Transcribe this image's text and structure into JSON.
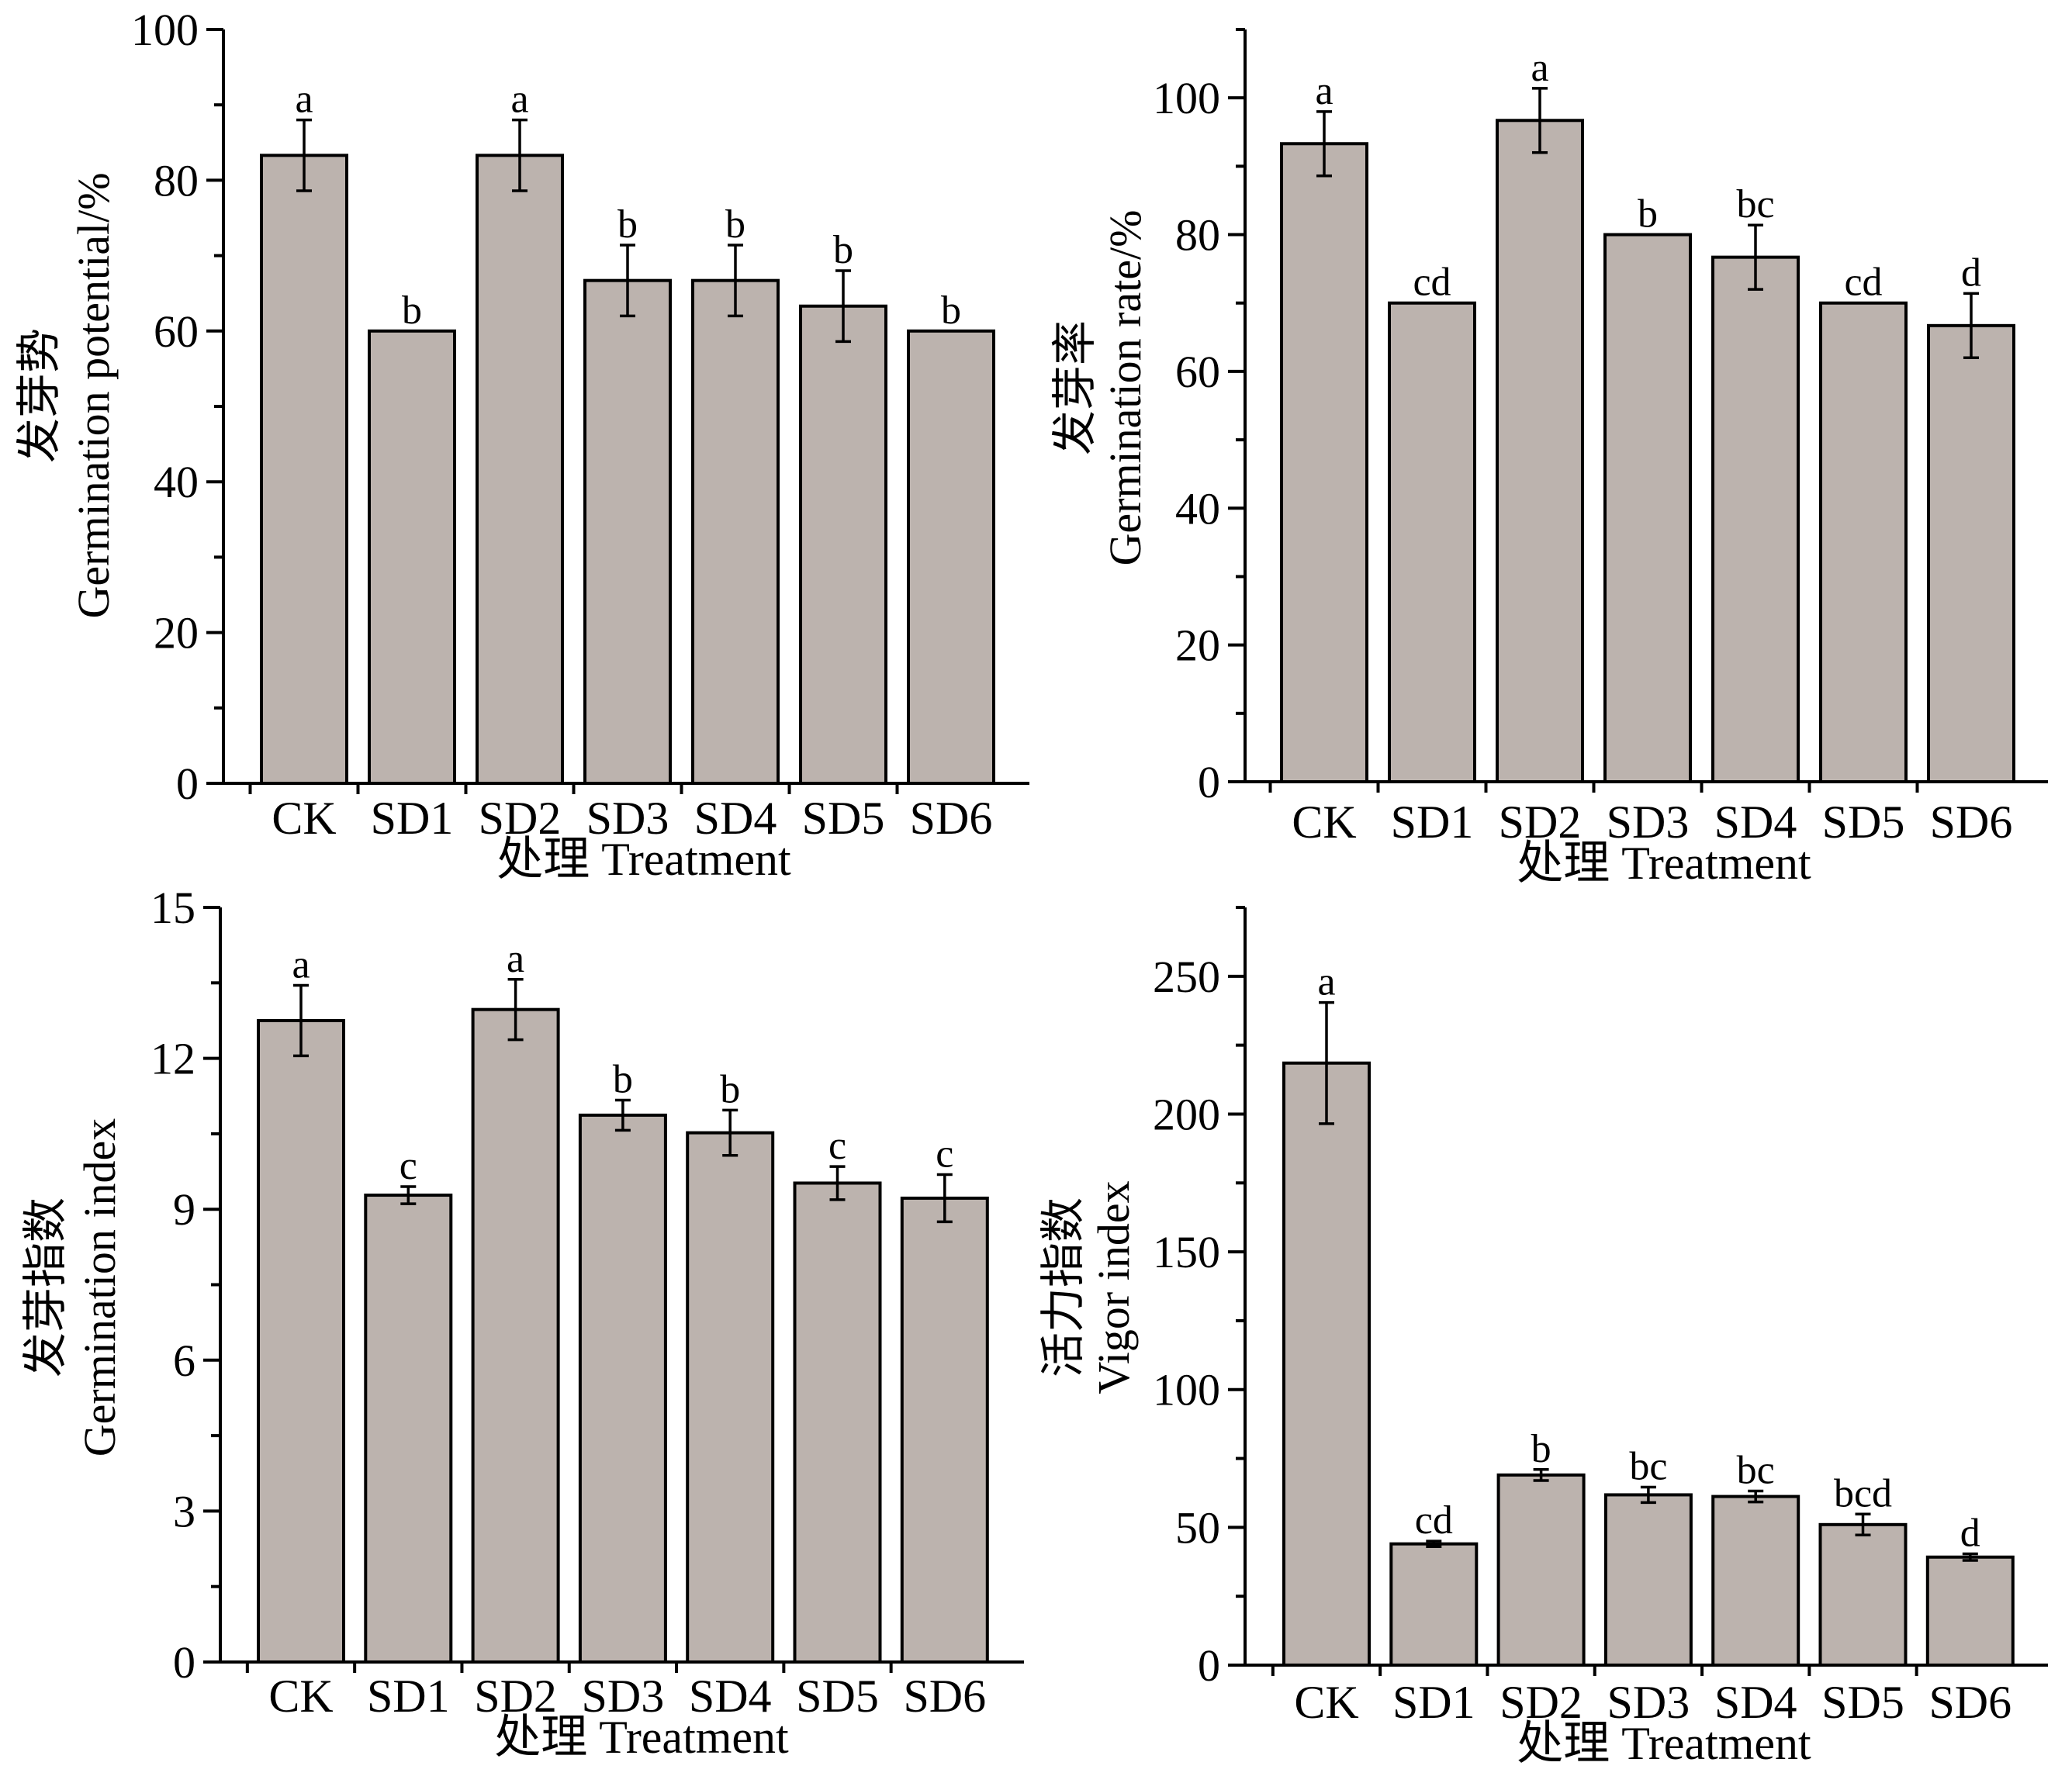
{
  "chart_data": [
    {
      "type": "bar",
      "id": "germination-potential",
      "categories": [
        "CK",
        "SD1",
        "SD2",
        "SD3",
        "SD4",
        "SD5",
        "SD6"
      ],
      "values": [
        83.3,
        60.0,
        83.3,
        66.7,
        66.7,
        63.3,
        60.0
      ],
      "errors": [
        4.7,
        0,
        4.7,
        4.7,
        4.7,
        4.7,
        0
      ],
      "significance": [
        "a",
        "b",
        "a",
        "b",
        "b",
        "b",
        "b"
      ],
      "ylim": [
        0,
        100
      ],
      "yticks": [
        0,
        20,
        40,
        60,
        80,
        100
      ],
      "ylabel_cn": "发芽势",
      "ylabel_en": "Germination potential/%",
      "xlabel": "处理  Treatment",
      "bar_color": "#bcb3ae"
    },
    {
      "type": "bar",
      "id": "germination-rate",
      "categories": [
        "CK",
        "SD1",
        "SD2",
        "SD3",
        "SD4",
        "SD5",
        "SD6"
      ],
      "values": [
        93.3,
        70.0,
        96.7,
        80.0,
        76.7,
        70.0,
        66.7
      ],
      "errors": [
        4.7,
        0,
        4.7,
        0,
        4.7,
        0,
        4.7
      ],
      "significance": [
        "a",
        "cd",
        "a",
        "b",
        "bc",
        "cd",
        "d"
      ],
      "ylim": [
        0,
        110
      ],
      "yticks": [
        0,
        20,
        40,
        60,
        80,
        100
      ],
      "ylabel_cn": "发芽率",
      "ylabel_en": "Germination rate/%",
      "xlabel": "处理  Treatment",
      "bar_color": "#bcb3ae"
    },
    {
      "type": "bar",
      "id": "germination-index",
      "categories": [
        "CK",
        "SD1",
        "SD2",
        "SD3",
        "SD4",
        "SD5",
        "SD6"
      ],
      "values": [
        12.75,
        9.28,
        12.97,
        10.87,
        10.52,
        9.52,
        9.22
      ],
      "errors": [
        0.7,
        0.17,
        0.6,
        0.3,
        0.45,
        0.33,
        0.47
      ],
      "significance": [
        "a",
        "c",
        "a",
        "b",
        "b",
        "c",
        "c"
      ],
      "ylim": [
        0,
        15
      ],
      "yticks": [
        0,
        3,
        6,
        9,
        12,
        15
      ],
      "ylabel_cn": "发芽指数",
      "ylabel_en": "Germination index",
      "xlabel": "处理  Treatment",
      "bar_color": "#bcb3ae"
    },
    {
      "type": "bar",
      "id": "vigor-index",
      "categories": [
        "CK",
        "SD1",
        "SD2",
        "SD3",
        "SD4",
        "SD5",
        "SD6"
      ],
      "values": [
        218.5,
        44.0,
        69.0,
        61.8,
        61.2,
        51.0,
        39.2
      ],
      "errors": [
        22,
        1,
        2,
        2.8,
        2,
        3.8,
        1.2
      ],
      "significance": [
        "a",
        "cd",
        "b",
        "bc",
        "bc",
        "bcd",
        "d"
      ],
      "ylim": [
        0,
        275
      ],
      "yticks": [
        0,
        50,
        100,
        150,
        200,
        250
      ],
      "ylabel_cn": "活力指数",
      "ylabel_en": "Vigor index",
      "xlabel": "处理  Treatment",
      "bar_color": "#bcb3ae"
    }
  ]
}
